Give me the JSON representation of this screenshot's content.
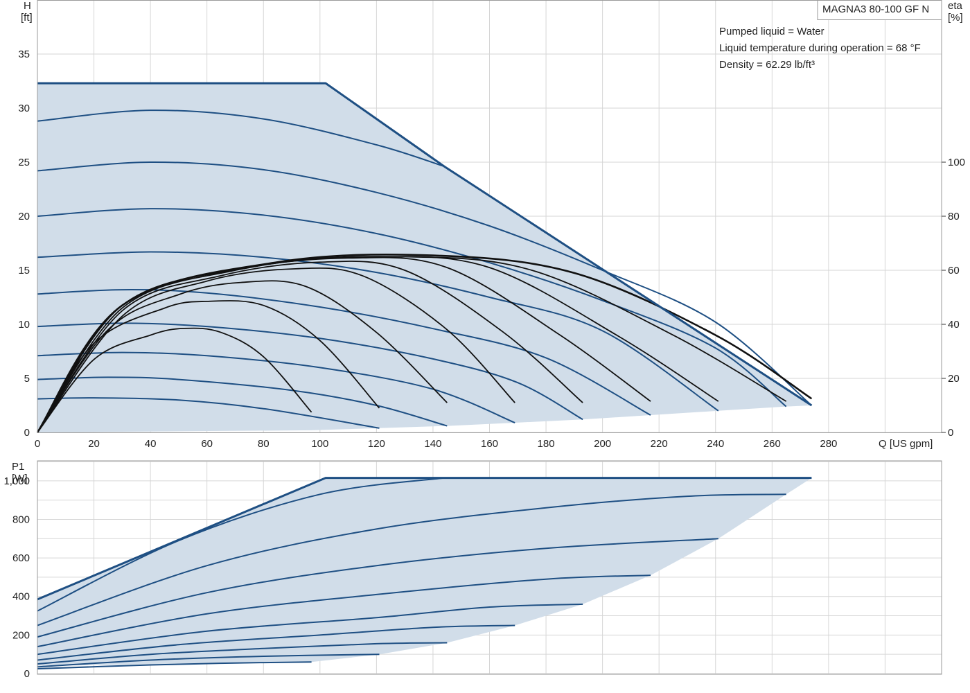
{
  "model": "MAGNA3 80-100 GF N",
  "info_lines": [
    "Pumped liquid = Water",
    "Liquid temperature during operation = 68 °F",
    "Density = 62.29 lb/ft³"
  ],
  "colors": {
    "envelope": "#1e4f83",
    "fill": "#d1dde9",
    "curve": "#1e4f83",
    "efficiency": "#111111",
    "grid": "#d6d6d6"
  },
  "chart_data": [
    {
      "type": "line",
      "name": "head-chart",
      "ylabel": "H",
      "yunit": "[ft]",
      "y2label": "eta",
      "y2unit": "[%]",
      "xlabel": "Q [US gpm]",
      "xlim": [
        0,
        320
      ],
      "ylim": [
        0,
        40
      ],
      "y2lim": [
        0,
        160
      ],
      "xticks": [
        0,
        20,
        40,
        60,
        80,
        100,
        120,
        140,
        160,
        180,
        200,
        220,
        240,
        260,
        280
      ],
      "yticks": [
        0,
        5,
        10,
        15,
        20,
        25,
        30,
        35
      ],
      "y2ticks": [
        0,
        20,
        40,
        60,
        80,
        100
      ],
      "grid": true,
      "envelope": [
        [
          0,
          32.3
        ],
        [
          102,
          32.3
        ],
        [
          144,
          24.6
        ],
        [
          274,
          2.5
        ],
        [
          265,
          2.4
        ],
        [
          241,
          2.0
        ],
        [
          217,
          1.6
        ],
        [
          193,
          1.2
        ],
        [
          169,
          0.9
        ],
        [
          145,
          0.6
        ],
        [
          121,
          0.4
        ],
        [
          97,
          0.2
        ],
        [
          0,
          0
        ]
      ],
      "speed_curves": [
        {
          "values": [
            [
              0,
              28.8
            ],
            [
              40,
              29.8
            ],
            [
              80,
              29.0
            ],
            [
              120,
              26.6
            ],
            [
              144,
              24.6
            ]
          ]
        },
        {
          "values": [
            [
              0,
              24.2
            ],
            [
              40,
              25.0
            ],
            [
              80,
              24.3
            ],
            [
              120,
              22.2
            ],
            [
              160,
              19.1
            ],
            [
              200,
              15.0
            ],
            [
              240,
              10.2
            ],
            [
              274,
              2.5
            ]
          ]
        },
        {
          "values": [
            [
              0,
              20.0
            ],
            [
              40,
              20.7
            ],
            [
              80,
              20.1
            ],
            [
              120,
              18.4
            ],
            [
              160,
              15.7
            ],
            [
              200,
              12.2
            ],
            [
              240,
              7.8
            ],
            [
              265,
              2.4
            ]
          ]
        },
        {
          "values": [
            [
              0,
              16.2
            ],
            [
              40,
              16.7
            ],
            [
              80,
              16.2
            ],
            [
              120,
              14.8
            ],
            [
              160,
              12.5
            ],
            [
              200,
              9.4
            ],
            [
              241,
              2.0
            ]
          ]
        },
        {
          "values": [
            [
              0,
              12.8
            ],
            [
              30,
              13.2
            ],
            [
              60,
              12.9
            ],
            [
              100,
              11.6
            ],
            [
              140,
              9.6
            ],
            [
              180,
              6.9
            ],
            [
              217,
              1.6
            ]
          ]
        },
        {
          "values": [
            [
              0,
              9.8
            ],
            [
              30,
              10.1
            ],
            [
              60,
              9.8
            ],
            [
              100,
              8.7
            ],
            [
              140,
              6.8
            ],
            [
              170,
              4.6
            ],
            [
              193,
              1.2
            ]
          ]
        },
        {
          "values": [
            [
              0,
              7.1
            ],
            [
              30,
              7.4
            ],
            [
              60,
              7.1
            ],
            [
              100,
              6.0
            ],
            [
              140,
              4.0
            ],
            [
              169,
              0.9
            ]
          ]
        },
        {
          "values": [
            [
              0,
              4.9
            ],
            [
              25,
              5.1
            ],
            [
              50,
              4.9
            ],
            [
              90,
              3.9
            ],
            [
              120,
              2.5
            ],
            [
              145,
              0.6
            ]
          ]
        },
        {
          "values": [
            [
              0,
              3.1
            ],
            [
              20,
              3.2
            ],
            [
              50,
              3.0
            ],
            [
              80,
              2.2
            ],
            [
              121,
              0.4
            ]
          ]
        }
      ],
      "efficiency_curves": [
        {
          "values": [
            [
              0,
              0
            ],
            [
              20,
              27
            ],
            [
              40,
              36
            ],
            [
              52,
              38.5
            ],
            [
              65,
              37
            ],
            [
              80,
              28
            ],
            [
              97,
              7.5
            ]
          ]
        },
        {
          "values": [
            [
              0,
              0
            ],
            [
              20,
              33
            ],
            [
              45,
              46
            ],
            [
              60,
              48.5
            ],
            [
              80,
              47
            ],
            [
              100,
              34
            ],
            [
              121,
              9
            ]
          ]
        },
        {
          "values": [
            [
              0,
              0
            ],
            [
              25,
              38
            ],
            [
              50,
              51
            ],
            [
              72,
              55.5
            ],
            [
              95,
              54
            ],
            [
              120,
              37
            ],
            [
              145,
              11
            ]
          ]
        },
        {
          "values": [
            [
              0,
              0
            ],
            [
              30,
              43
            ],
            [
              60,
              56
            ],
            [
              90,
              60.5
            ],
            [
              115,
              58
            ],
            [
              145,
              38
            ],
            [
              169,
              11
            ]
          ]
        },
        {
          "values": [
            [
              0,
              0
            ],
            [
              30,
              45
            ],
            [
              65,
              58
            ],
            [
              100,
              63
            ],
            [
              130,
              60
            ],
            [
              165,
              37
            ],
            [
              193,
              11
            ]
          ]
        },
        {
          "values": [
            [
              0,
              0
            ],
            [
              30,
              46
            ],
            [
              70,
              60
            ],
            [
              110,
              64.5
            ],
            [
              145,
              61
            ],
            [
              185,
              36
            ],
            [
              217,
              11.5
            ]
          ]
        },
        {
          "values": [
            [
              0,
              0
            ],
            [
              30,
              47
            ],
            [
              75,
              61
            ],
            [
              120,
              65
            ],
            [
              160,
              61
            ],
            [
              205,
              36
            ],
            [
              241,
              11.5
            ]
          ]
        },
        {
          "values": [
            [
              0,
              0
            ],
            [
              30,
              47
            ],
            [
              80,
              62
            ],
            [
              130,
              65
            ],
            [
              175,
              60
            ],
            [
              225,
              36
            ],
            [
              265,
              11.5
            ]
          ]
        },
        {
          "values": [
            [
              0,
              0
            ],
            [
              30,
              47
            ],
            [
              85,
              63
            ],
            [
              140,
              65.5
            ],
            [
              190,
              59
            ],
            [
              240,
              36
            ],
            [
              274,
              12.5
            ]
          ]
        }
      ]
    },
    {
      "type": "line",
      "name": "power-chart",
      "ylabel": "P1",
      "yunit": "[W]",
      "xlim": [
        0,
        320
      ],
      "ylim": [
        0,
        1100
      ],
      "yticks": [
        0,
        200,
        400,
        600,
        800,
        1000
      ],
      "ytick_labels": [
        "0",
        "200",
        "400",
        "600",
        "800",
        "1,000"
      ],
      "grid": true,
      "envelope": [
        [
          0,
          385
        ],
        [
          102,
          1015
        ],
        [
          274,
          1015
        ],
        [
          265,
          930
        ],
        [
          241,
          700
        ],
        [
          217,
          510
        ],
        [
          193,
          360
        ],
        [
          169,
          250
        ],
        [
          145,
          160
        ],
        [
          121,
          100
        ],
        [
          97,
          60
        ],
        [
          0,
          40
        ]
      ],
      "power_curves": [
        {
          "values": [
            [
              0,
              325
            ],
            [
              50,
              690
            ],
            [
              100,
              930
            ],
            [
              144,
              1015
            ]
          ]
        },
        {
          "values": [
            [
              0,
              250
            ],
            [
              60,
              560
            ],
            [
              120,
              750
            ],
            [
              180,
              860
            ],
            [
              230,
              920
            ],
            [
              265,
              930
            ]
          ]
        },
        {
          "values": [
            [
              0,
              190
            ],
            [
              60,
              420
            ],
            [
              120,
              560
            ],
            [
              180,
              650
            ],
            [
              241,
              700
            ]
          ]
        },
        {
          "values": [
            [
              0,
              140
            ],
            [
              60,
              310
            ],
            [
              120,
              410
            ],
            [
              180,
              490
            ],
            [
              217,
              510
            ]
          ]
        },
        {
          "values": [
            [
              0,
              100
            ],
            [
              60,
              220
            ],
            [
              120,
              290
            ],
            [
              160,
              345
            ],
            [
              193,
              360
            ]
          ]
        },
        {
          "values": [
            [
              0,
              70
            ],
            [
              50,
              150
            ],
            [
              100,
              200
            ],
            [
              140,
              240
            ],
            [
              169,
              250
            ]
          ]
        },
        {
          "values": [
            [
              0,
              50
            ],
            [
              40,
              100
            ],
            [
              80,
              130
            ],
            [
              120,
              155
            ],
            [
              145,
              160
            ]
          ]
        },
        {
          "values": [
            [
              0,
              35
            ],
            [
              40,
              70
            ],
            [
              80,
              90
            ],
            [
              121,
              100
            ]
          ]
        },
        {
          "values": [
            [
              0,
              25
            ],
            [
              40,
              45
            ],
            [
              70,
              55
            ],
            [
              97,
              60
            ]
          ]
        }
      ]
    }
  ]
}
